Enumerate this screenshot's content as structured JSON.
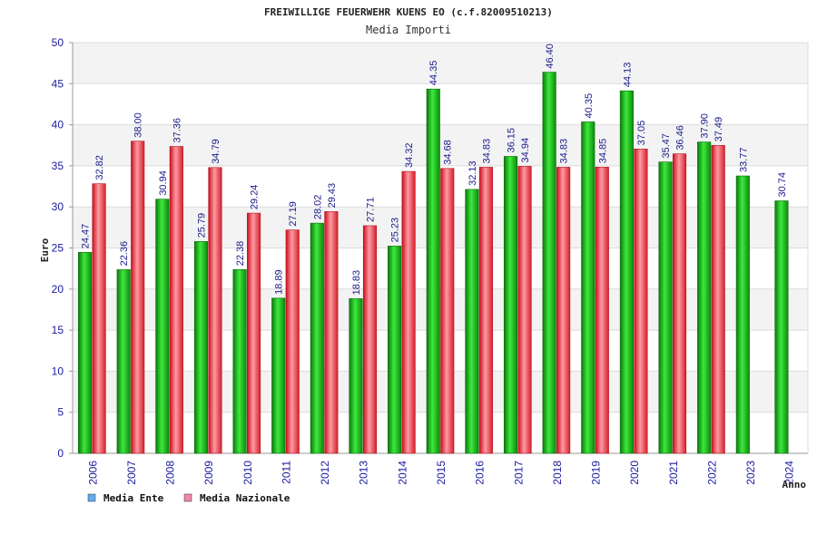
{
  "chart_data": {
    "type": "bar",
    "title": "FREIWILLIGE FEUERWEHR KUENS EO (c.f.82009510213)",
    "subtitle": "Media Importi",
    "xlabel": "Anno",
    "ylabel": "Euro",
    "ylim": [
      0,
      50
    ],
    "yticks": [
      0,
      5,
      10,
      15,
      20,
      25,
      30,
      35,
      40,
      45,
      50
    ],
    "grid": true,
    "legend_position": "bottom-left",
    "categories": [
      "2006",
      "2007",
      "2008",
      "2009",
      "2010",
      "2011",
      "2012",
      "2013",
      "2014",
      "2015",
      "2016",
      "2017",
      "2018",
      "2019",
      "2020",
      "2021",
      "2022",
      "2023",
      "2024"
    ],
    "series": [
      {
        "name": "Media Ente",
        "color": "#22bb22",
        "legend_color": "#66aaee",
        "values": [
          24.47,
          22.36,
          30.94,
          25.79,
          22.38,
          18.89,
          28.02,
          18.83,
          25.23,
          44.35,
          32.13,
          36.15,
          46.4,
          40.35,
          44.13,
          35.47,
          37.9,
          33.77,
          30.74
        ],
        "labels": [
          "24.47",
          "22.36",
          "30.94",
          "25.79",
          "22.38",
          "18.89",
          "28.02",
          "18.83",
          "25.23",
          "44.35",
          "32.13",
          "36.15",
          "46.40",
          "40.35",
          "44.13",
          "35.47",
          "37.90",
          "33.77",
          "30.74"
        ]
      },
      {
        "name": "Media Nazionale",
        "color": "#ee3344",
        "legend_color": "#ee88aa",
        "values": [
          32.82,
          38.0,
          37.36,
          34.79,
          29.24,
          27.19,
          29.43,
          27.71,
          34.32,
          34.68,
          34.83,
          34.94,
          34.83,
          34.85,
          37.05,
          36.46,
          37.49,
          null,
          null
        ],
        "labels": [
          "32.82",
          "38.00",
          "37.36",
          "34.79",
          "29.24",
          "27.19",
          "29.43",
          "27.71",
          "34.32",
          "34.68",
          "34.83",
          "34.94",
          "34.83",
          "34.85",
          "37.05",
          "36.46",
          "37.49",
          null,
          null
        ]
      }
    ]
  }
}
